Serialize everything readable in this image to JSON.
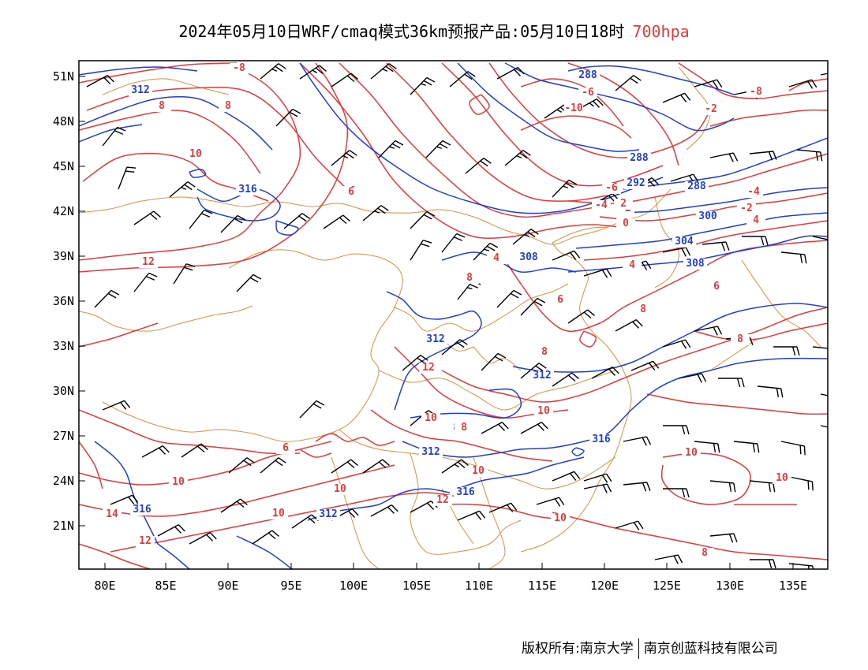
{
  "title": {
    "main": "2024年05月10日WRF/cmaq模式36km预报产品:05月10日18时",
    "level": "700hpa"
  },
  "map": {
    "lon_ticks": [
      "80E",
      "85E",
      "90E",
      "95E",
      "100E",
      "105E",
      "110E",
      "115E",
      "120E",
      "125E",
      "130E",
      "135E"
    ],
    "lat_ticks": [
      "51N",
      "48N",
      "45N",
      "42N",
      "39N",
      "36N",
      "33N",
      "30N",
      "27N",
      "24N",
      "21N"
    ],
    "temp_labels": [
      "-8",
      "-6",
      "-10",
      "-8",
      "-2",
      "8",
      "8",
      "-6",
      "-4",
      "-2",
      "-4",
      "-2",
      "0",
      "2",
      "4",
      "-6",
      "8",
      "10",
      "12",
      "6",
      "4",
      "6",
      "8",
      "8",
      "6",
      "4",
      "6",
      "8",
      "8",
      "10",
      "6",
      "10",
      "10",
      "8",
      "8",
      "10",
      "10",
      "12",
      "10",
      "14",
      "10",
      "12",
      "12",
      "10",
      "8",
      "10"
    ],
    "height_labels": [
      "312",
      "288",
      "288",
      "292",
      "288",
      "300",
      "304",
      "308",
      "308",
      "316",
      "312",
      "312",
      "316",
      "312",
      "316",
      "316",
      "312"
    ],
    "colors": {
      "temperature": "#e8383a",
      "geopotential_height": "#1f3fd8",
      "borders": "#e08f3c",
      "wind_barbs": "#000000"
    }
  },
  "footer": {
    "left": "版权所有:南京大学",
    "right": "南京创蓝科技有限公司"
  }
}
